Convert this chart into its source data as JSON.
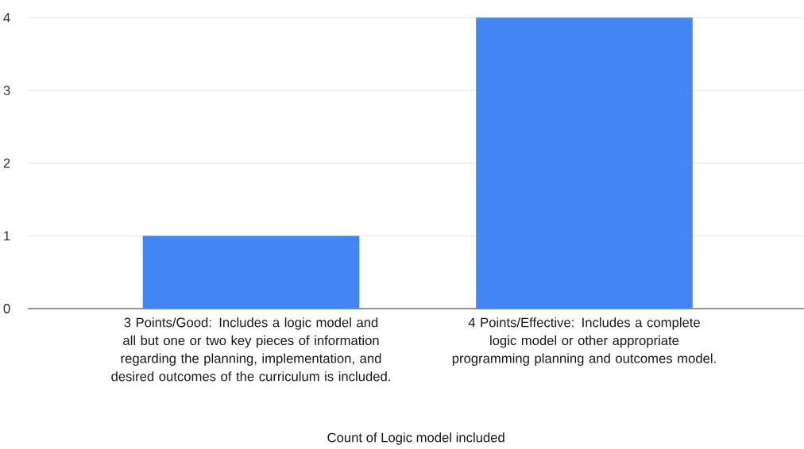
{
  "chart_data": {
    "type": "bar",
    "categories": [
      "3 Points/Good:  Includes a logic model and all but one or two key pieces of information regarding the planning, implementation, and desired outcomes of the curriculum is included.",
      "4 Points/Effective:  Includes a complete logic model or other appropriate programming planning and outcomes model."
    ],
    "values": [
      1,
      4
    ],
    "color": "#4285f4",
    "xlabel": "Count of Logic model included",
    "ylim": [
      0,
      4
    ],
    "yticks": [
      0,
      1,
      2,
      3,
      4
    ],
    "grid": "y"
  }
}
